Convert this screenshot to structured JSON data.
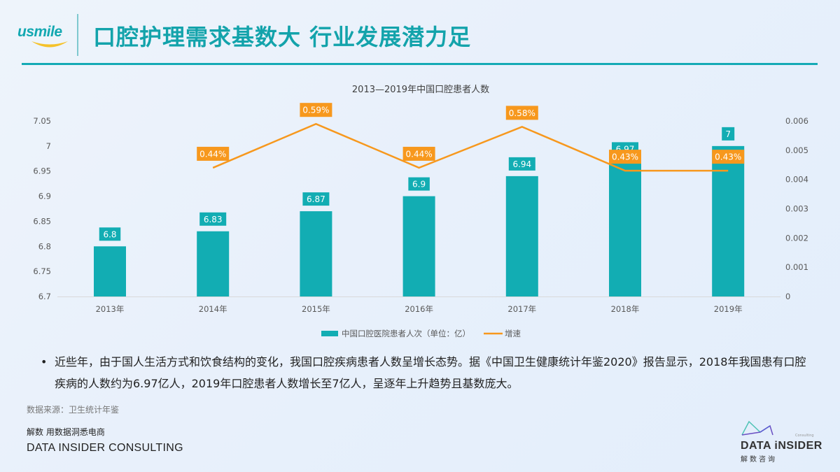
{
  "header": {
    "logo_text": "usmile",
    "title": "口腔护理需求基数大 行业发展潜力足"
  },
  "colors": {
    "teal": "#12adb3",
    "orange": "#f7981d",
    "title_teal": "#13a3ab",
    "axis_text": "#595959"
  },
  "chart_data": {
    "type": "bar+line",
    "title": "2013—2019年中国口腔患者人数",
    "categories": [
      "2013年",
      "2014年",
      "2015年",
      "2016年",
      "2017年",
      "2018年",
      "2019年"
    ],
    "series": [
      {
        "name": "中国口腔医院患者人次（单位：亿）",
        "type": "bar",
        "axis": "left",
        "values": [
          6.8,
          6.83,
          6.87,
          6.9,
          6.94,
          6.97,
          7
        ],
        "labels": [
          "6.8",
          "6.83",
          "6.87",
          "6.9",
          "6.94",
          "6.97",
          "7"
        ]
      },
      {
        "name": "增速",
        "type": "line",
        "axis": "right",
        "values": [
          null,
          0.0044,
          0.0059,
          0.0044,
          0.0058,
          0.0043,
          0.0043
        ],
        "labels": [
          "",
          "0.44%",
          "0.59%",
          "0.44%",
          "0.58%",
          "0.43%",
          "0.43%"
        ]
      }
    ],
    "left_axis": {
      "min": 6.7,
      "max": 7.05,
      "ticks": [
        "6.7",
        "6.75",
        "6.8",
        "6.85",
        "6.9",
        "6.95",
        "7",
        "7.05"
      ]
    },
    "right_axis": {
      "min": 0,
      "max": 0.006,
      "ticks": [
        "0",
        "0.001",
        "0.002",
        "0.003",
        "0.004",
        "0.005",
        "0.006"
      ]
    },
    "grid": false,
    "legend_position": "bottom"
  },
  "legend": {
    "bar_label": "中国口腔医院患者人次（单位：亿）",
    "line_label": "增速"
  },
  "body": {
    "bullet": "•",
    "paragraph": "近些年，由于国人生活方式和饮食结构的变化，我国口腔疾病患者人数呈增长态势。据《中国卫生健康统计年鉴2020》报告显示，2018年我国患有口腔疾病的人数约为6.97亿人，2019年口腔患者人数增长至7亿人，呈逐年上升趋势且基数庞大。"
  },
  "footer": {
    "source": "数据来源：卫生统计年鉴",
    "slogan": "解数 用数据洞悉电商",
    "company": "DATA INSIDER CONSULTING",
    "brand_name": "DATA iNSIDER",
    "brand_cn": "解数咨询",
    "brand_small": "Consulting"
  }
}
